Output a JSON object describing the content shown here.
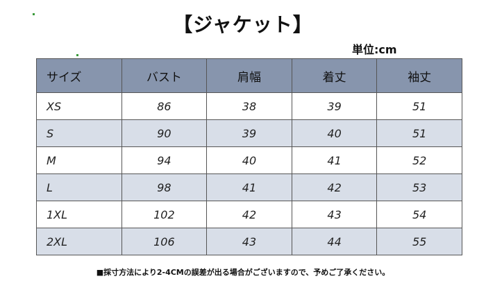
{
  "title": "【ジャケット】",
  "unit_label": "単位:cm",
  "table": {
    "headers": [
      "サイズ",
      "バスト",
      "肩幅",
      "着丈",
      "袖丈"
    ],
    "rows": [
      [
        "XS",
        "86",
        "38",
        "39",
        "51"
      ],
      [
        "S",
        "90",
        "39",
        "40",
        "51"
      ],
      [
        "M",
        "94",
        "40",
        "41",
        "52"
      ],
      [
        "L",
        "98",
        "41",
        "42",
        "53"
      ],
      [
        "1XL",
        "102",
        "42",
        "43",
        "54"
      ],
      [
        "2XL",
        "106",
        "43",
        "44",
        "55"
      ]
    ]
  },
  "note": "■採寸方法により2-4CMの誤差が出る場合がございますので、予めご了承ください。",
  "colors": {
    "header_bg": "#8795ad",
    "alt_row_bg": "#d8dee8",
    "border": "#555555"
  }
}
